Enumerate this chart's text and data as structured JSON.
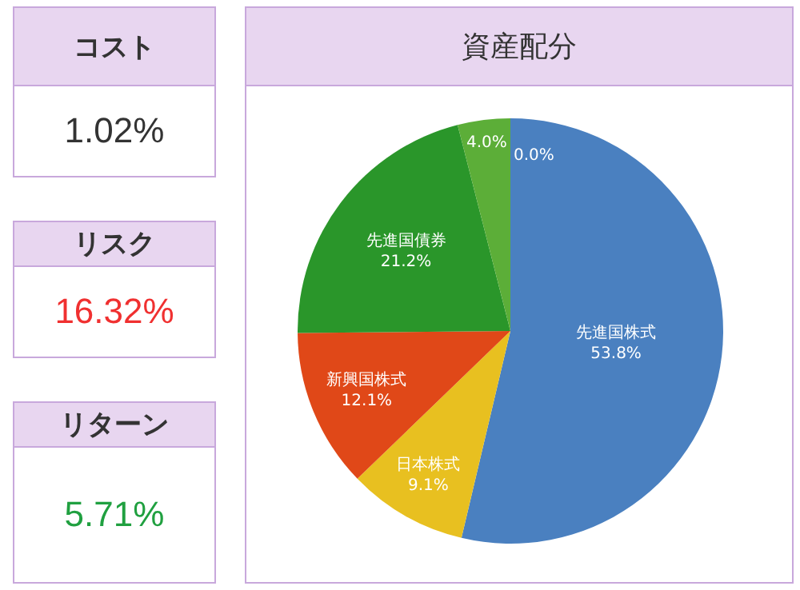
{
  "chart_data": [
    {
      "type": "other",
      "title": "コスト",
      "annotations": [
        "1.02%"
      ],
      "color": "#333333"
    },
    {
      "type": "other",
      "title": "リスク",
      "annotations": [
        "16.32%"
      ],
      "color": "#f03030"
    },
    {
      "type": "other",
      "title": "リターン",
      "annotations": [
        "5.71%"
      ],
      "color": "#20a040"
    },
    {
      "type": "pie",
      "title": "資産配分",
      "categories": [
        "先進国株式",
        "日本株式",
        "新興国株式",
        "先進国債券",
        null,
        null
      ],
      "values": [
        53.8,
        9.1,
        12.1,
        21.2,
        4.0,
        0.0
      ],
      "value_labels": [
        "53.8%",
        "9.1%",
        "12.1%",
        "21.2%",
        "4.0%",
        "0.0%"
      ],
      "colors": [
        "#4a80c0",
        "#e8c020",
        "#e04818",
        "#2a962a",
        "#5cae38",
        "#6abe40"
      ],
      "legend": false
    }
  ]
}
